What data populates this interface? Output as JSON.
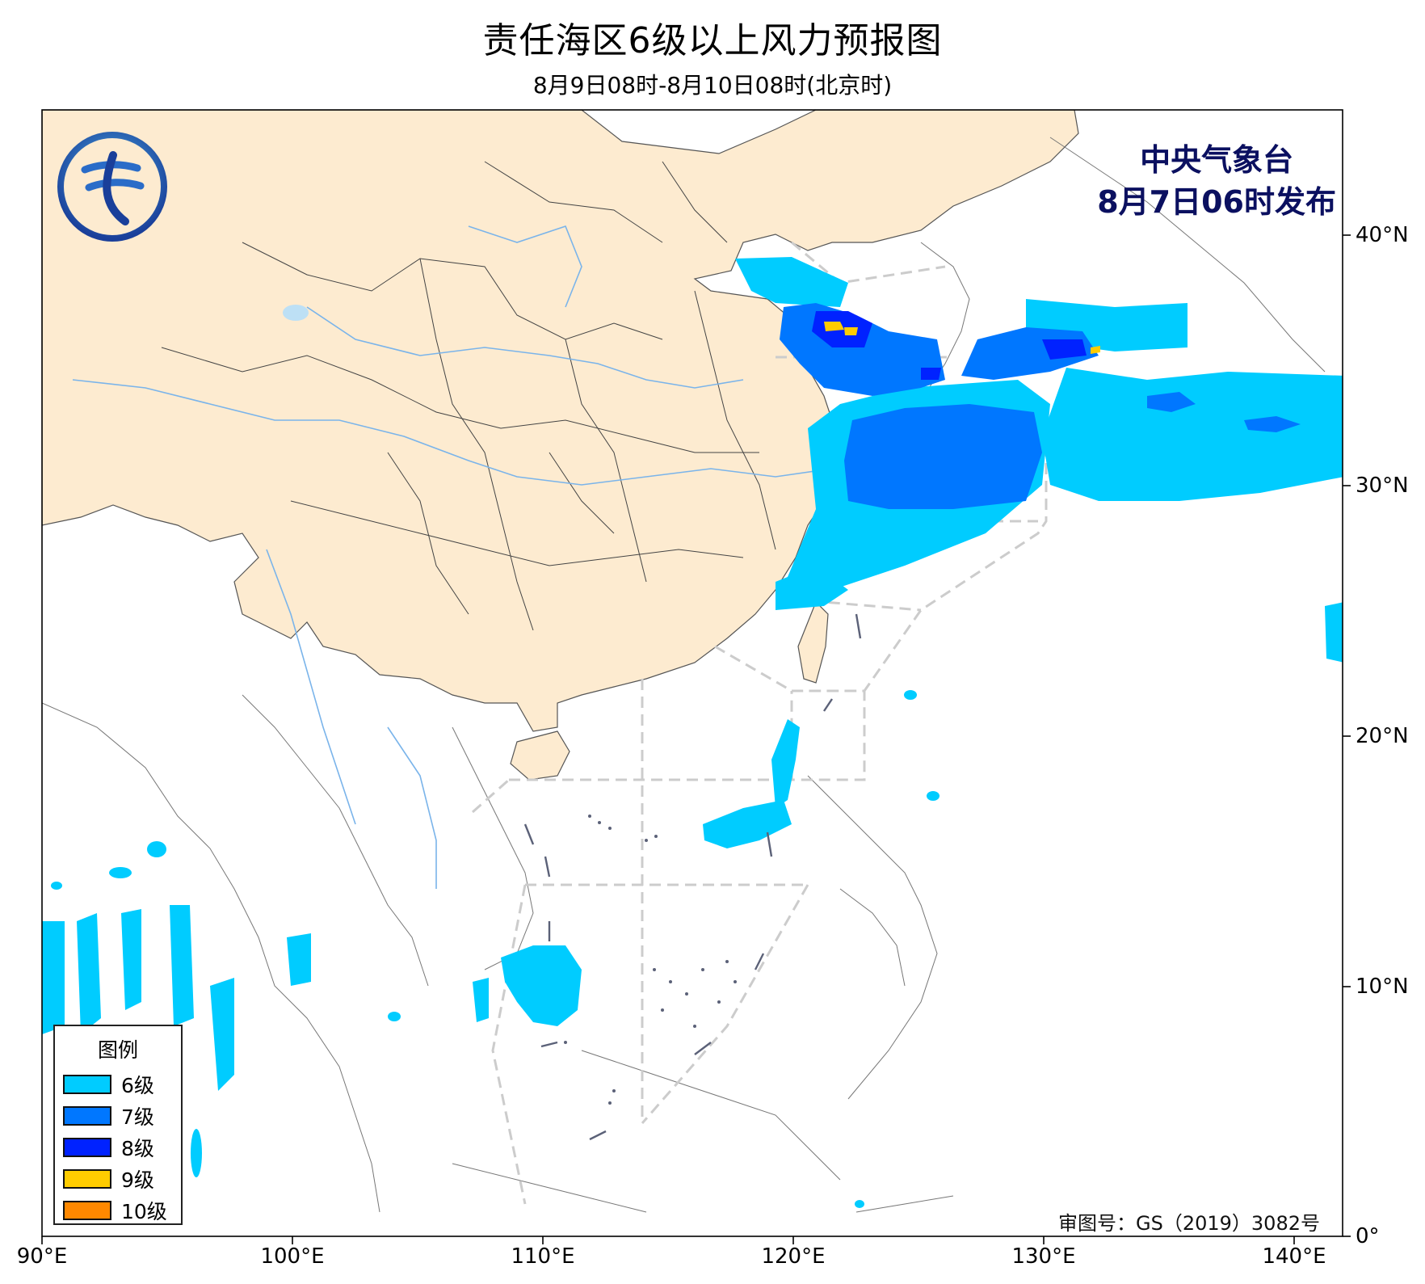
{
  "header": {
    "title": "责任海区6级以上风力预报图",
    "subtitle": "8月9日08时-8月10日08时(北京时)"
  },
  "issuer": {
    "line1": "中央气象台",
    "line2": "8月7日06时发布"
  },
  "approval_note": "审图号：GS（2019）3082号",
  "axes": {
    "x_ticks": [
      {
        "label": "90°E",
        "value": 90
      },
      {
        "label": "100°E",
        "value": 100
      },
      {
        "label": "110°E",
        "value": 110
      },
      {
        "label": "120°E",
        "value": 120
      },
      {
        "label": "130°E",
        "value": 130
      },
      {
        "label": "140°E",
        "value": 140
      }
    ],
    "y_ticks": [
      {
        "label": "40°N",
        "value": 40
      },
      {
        "label": "30°N",
        "value": 30
      },
      {
        "label": "20°N",
        "value": 20
      },
      {
        "label": "10°N",
        "value": 10
      },
      {
        "label": "0°",
        "value": 0
      }
    ]
  },
  "legend": {
    "title": "图例",
    "items": [
      {
        "label": "6级",
        "color": "#00ccff"
      },
      {
        "label": "7级",
        "color": "#0077ff"
      },
      {
        "label": "8级",
        "color": "#0022ff"
      },
      {
        "label": "9级",
        "color": "#ffcc00"
      },
      {
        "label": "10级",
        "color": "#ff8800"
      }
    ]
  },
  "colors": {
    "china_land": "#fdebd0",
    "river": "#7ab4ea",
    "boundary": "#444444",
    "sea_zone_line": "#cccccc",
    "force6": "#00ccff",
    "force7": "#0077ff",
    "force8": "#0022ff",
    "force9": "#ffcc00"
  }
}
